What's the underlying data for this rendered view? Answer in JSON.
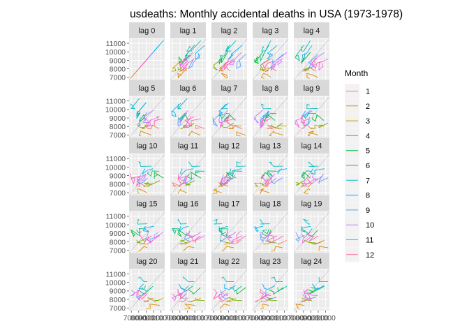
{
  "chart_data": {
    "type": "line",
    "kind": "lag-plot",
    "title": "usdeaths: Monthly accidental deaths in USA (1973-1978)",
    "xlabel": "",
    "ylabel": "",
    "xlim": [
      6700,
      11500
    ],
    "ylim": [
      6700,
      11500
    ],
    "y_ticks": [
      7000,
      8000,
      9000,
      10000,
      11000
    ],
    "x_ticks": [
      7000,
      8000,
      9000,
      10000,
      11000
    ],
    "x_tick_labels": [
      "7000",
      "8000",
      "9000",
      "10000",
      "11000"
    ],
    "grid": true,
    "legend_position": "right",
    "legend_title": "Month",
    "legend": [
      "1",
      "2",
      "3",
      "4",
      "5",
      "6",
      "7",
      "8",
      "9",
      "10",
      "11",
      "12"
    ],
    "colors": [
      "#F8766D",
      "#DE8C00",
      "#B79F00",
      "#7CAE00",
      "#00BA38",
      "#00C08B",
      "#00BFC4",
      "#00B4F0",
      "#619CFF",
      "#C77CFF",
      "#F564E3",
      "#FF64B0"
    ],
    "panels": [
      "lag 0",
      "lag 1",
      "lag 2",
      "lag 3",
      "lag 4",
      "lag 5",
      "lag 6",
      "lag 7",
      "lag 8",
      "lag 9",
      "lag 10",
      "lag 11",
      "lag 12",
      "lag 13",
      "lag 14",
      "lag 15",
      "lag 16",
      "lag 17",
      "lag 18",
      "lag 19",
      "lag 20",
      "lag 21",
      "lag 22",
      "lag 23",
      "lag 24"
    ],
    "frequency": 12,
    "start": "1973-01",
    "values": [
      9007,
      8106,
      8928,
      9137,
      10017,
      10826,
      11317,
      10744,
      9713,
      9938,
      9161,
      8927,
      7750,
      6981,
      8038,
      8422,
      8714,
      9512,
      10120,
      9823,
      8743,
      9129,
      8710,
      8680,
      8162,
      7306,
      8124,
      7870,
      9387,
      9556,
      10093,
      9620,
      8285,
      8466,
      8160,
      8034,
      7717,
      7461,
      7767,
      7925,
      8623,
      8945,
      10078,
      9179,
      8037,
      8488,
      7874,
      8647,
      7792,
      6957,
      7726,
      8106,
      8890,
      9299,
      10625,
      9302,
      8314,
      8850,
      8265,
      8796,
      7836,
      6892,
      7791,
      8192,
      9115,
      9434,
      10484,
      9827,
      9110,
      9070,
      8633,
      9240
    ]
  }
}
